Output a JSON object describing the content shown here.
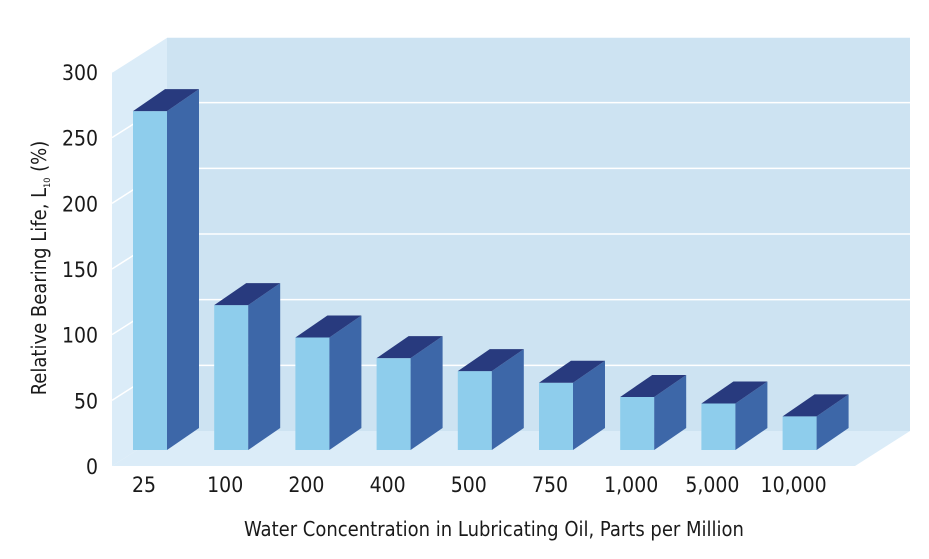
{
  "chart_data": {
    "type": "bar",
    "title": "",
    "xlabel": "Water Concentration in Lubricating Oil, Parts per Million",
    "ylabel_main": "Relative Bearing Life, L",
    "ylabel_sub": "10",
    "ylabel_unit": " (%)",
    "categories": [
      "25",
      "100",
      "200",
      "400",
      "500",
      "750",
      "1,000",
      "5,000",
      "10,000"
    ],
    "values": [
      262,
      112,
      87,
      71,
      61,
      52,
      41,
      36,
      26
    ],
    "yticks": [
      "0",
      "50",
      "100",
      "150",
      "200",
      "250",
      "300"
    ],
    "ylim": [
      0,
      300
    ],
    "grid": true,
    "style": "3d-bars",
    "colors": {
      "front": "#8ecdec",
      "side": "#3d67a8",
      "top": "#283a7e",
      "background": "#cde3f2",
      "wall": "#dbecf8",
      "grid": "#ffffff"
    }
  }
}
